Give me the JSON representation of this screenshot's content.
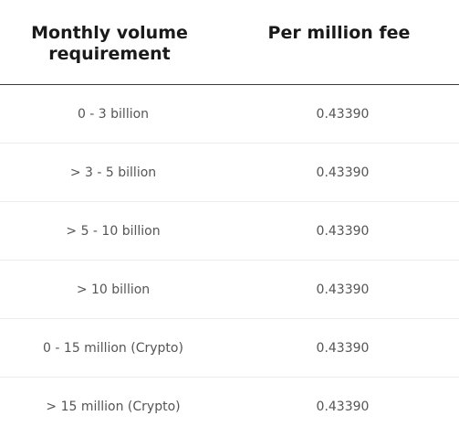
{
  "table": {
    "headers": {
      "volume": "Monthly volume requirement",
      "fee": "Per million fee"
    },
    "rows": [
      {
        "volume": "0 - 3 billion",
        "fee": "0.43390"
      },
      {
        "volume": "> 3 - 5 billion",
        "fee": "0.43390"
      },
      {
        "volume": "> 5 - 10 billion",
        "fee": "0.43390"
      },
      {
        "volume": "> 10 billion",
        "fee": "0.43390"
      },
      {
        "volume": "0 - 15 million (Crypto)",
        "fee": "0.43390"
      },
      {
        "volume": "> 15 million (Crypto)",
        "fee": "0.43390"
      }
    ]
  }
}
